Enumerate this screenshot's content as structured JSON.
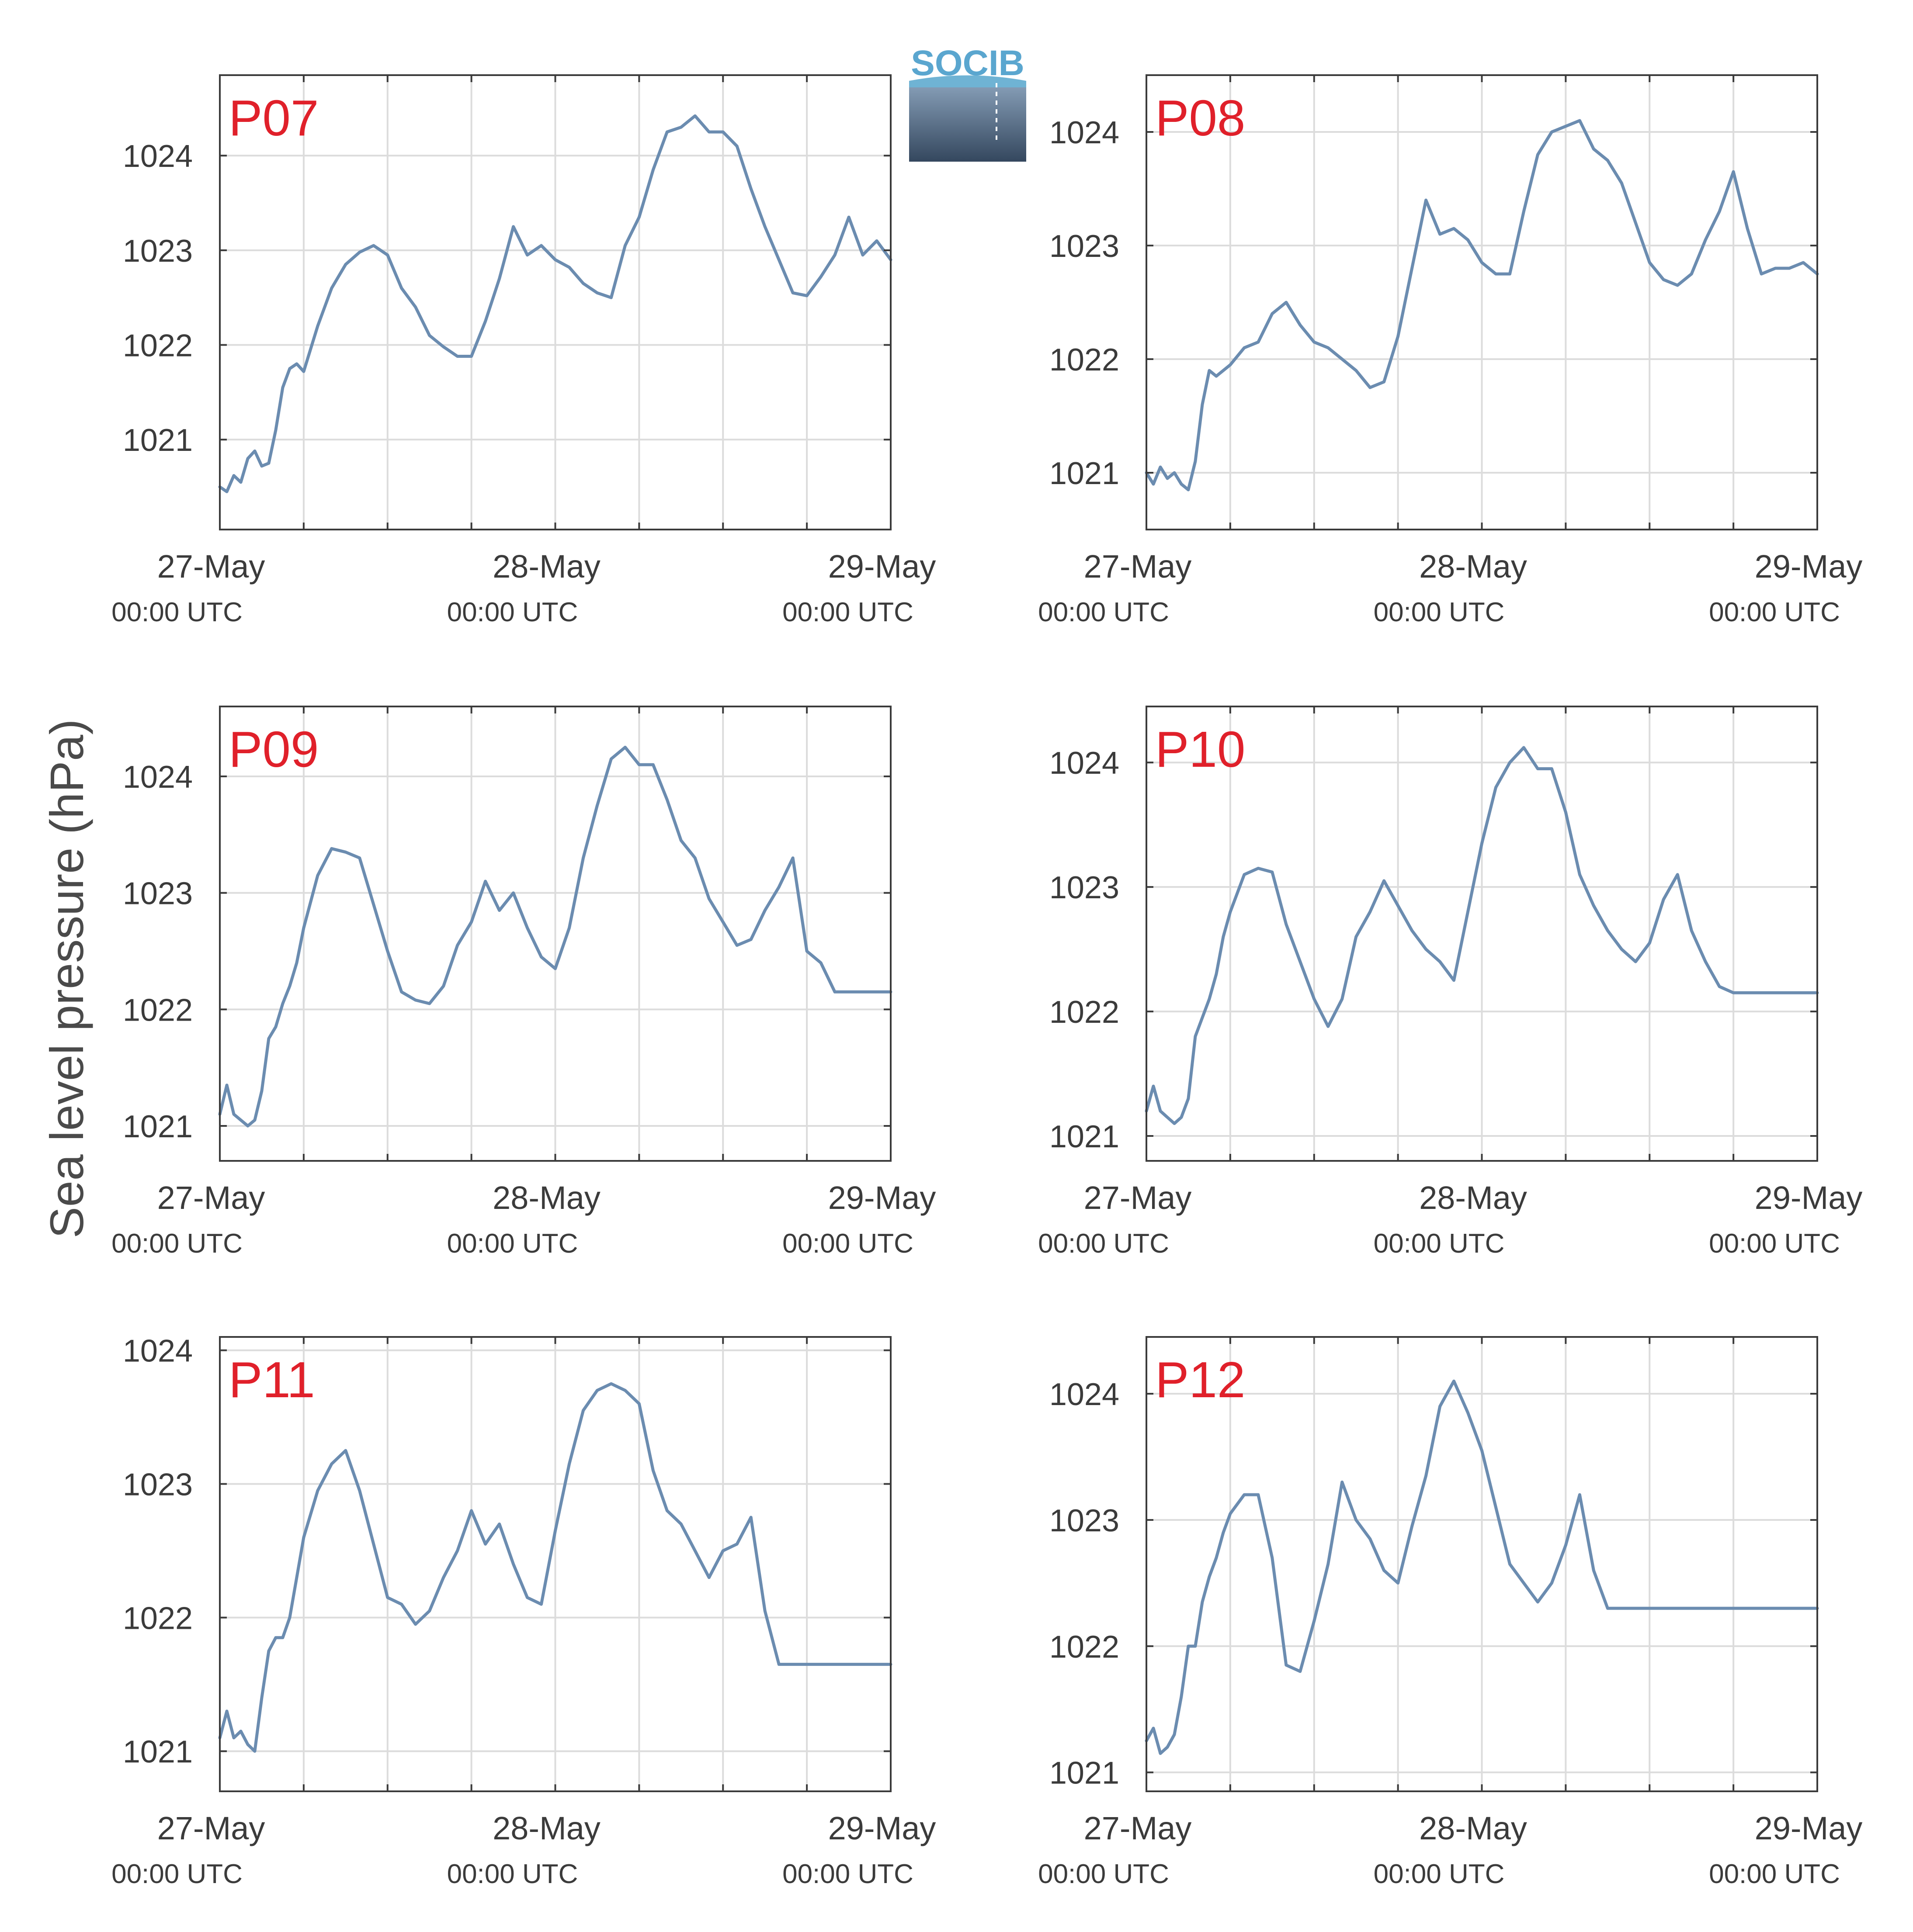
{
  "figure": {
    "ylabel": "Sea level pressure (hPa)",
    "logo_text": "SOCIB",
    "series_color": "#6b8cb0",
    "panel_label_color": "#e0202a",
    "grid_color": "#dcdcdc",
    "axis_color": "#3b3b3b"
  },
  "chart_data": [
    {
      "type": "line",
      "panel": "P07",
      "xlim": [
        0,
        48
      ],
      "ylim": [
        1020.05,
        1024.85
      ],
      "yticks": [
        1021,
        1022,
        1023,
        1024
      ],
      "xticks": [
        {
          "hour": 0,
          "date": "27-May",
          "time": "00:00 UTC"
        },
        {
          "hour": 24,
          "date": "28-May",
          "time": "00:00 UTC"
        },
        {
          "hour": 48,
          "date": "29-May",
          "time": "00:00 UTC"
        }
      ],
      "minor_x_hours": [
        6,
        12,
        18,
        30,
        36,
        42
      ],
      "x": [
        0,
        0.5,
        1,
        1.5,
        2,
        2.5,
        3,
        3.5,
        4,
        4.5,
        5,
        5.5,
        6,
        7,
        8,
        9,
        10,
        11,
        12,
        13,
        14,
        15,
        16,
        17,
        18,
        19,
        20,
        21,
        22,
        23,
        24,
        25,
        26,
        27,
        28,
        29,
        30,
        31,
        32,
        33,
        34,
        35,
        36,
        37,
        38,
        39,
        40,
        41,
        42,
        43,
        44,
        45,
        46,
        47,
        48
      ],
      "y": [
        1020.5,
        1020.45,
        1020.62,
        1020.55,
        1020.8,
        1020.88,
        1020.72,
        1020.75,
        1021.1,
        1021.55,
        1021.75,
        1021.8,
        1021.72,
        1022.2,
        1022.6,
        1022.85,
        1022.98,
        1023.05,
        1022.95,
        1022.6,
        1022.4,
        1022.1,
        1021.98,
        1021.88,
        1021.88,
        1022.25,
        1022.7,
        1023.25,
        1022.95,
        1023.05,
        1022.9,
        1022.82,
        1022.65,
        1022.55,
        1022.5,
        1023.05,
        1023.35,
        1023.85,
        1024.25,
        1024.3,
        1024.42,
        1024.25,
        1024.25,
        1024.1,
        1023.65,
        1023.25,
        1022.9,
        1022.55,
        1022.52,
        1022.72,
        1022.95,
        1023.35,
        1022.95,
        1023.1,
        1022.9
      ]
    },
    {
      "type": "line",
      "panel": "P08",
      "xlim": [
        0,
        48
      ],
      "ylim": [
        1020.5,
        1024.5
      ],
      "yticks": [
        1021,
        1022,
        1023,
        1024
      ],
      "xticks": [
        {
          "hour": 0,
          "date": "27-May",
          "time": "00:00 UTC"
        },
        {
          "hour": 24,
          "date": "28-May",
          "time": "00:00 UTC"
        },
        {
          "hour": 48,
          "date": "29-May",
          "time": "00:00 UTC"
        }
      ],
      "minor_x_hours": [
        6,
        12,
        18,
        30,
        36,
        42
      ],
      "x": [
        0,
        0.5,
        1,
        1.5,
        2,
        2.5,
        3,
        3.5,
        4,
        4.5,
        5,
        5.5,
        6,
        7,
        8,
        9,
        10,
        11,
        12,
        13,
        14,
        15,
        16,
        17,
        18,
        19,
        20,
        21,
        22,
        23,
        24,
        25,
        26,
        27,
        28,
        29,
        30,
        31,
        32,
        33,
        34,
        35,
        36,
        37,
        38,
        39,
        40,
        41,
        42,
        43,
        44,
        45,
        46,
        47,
        48
      ],
      "y": [
        1021.0,
        1020.9,
        1021.05,
        1020.95,
        1021.0,
        1020.9,
        1020.85,
        1021.1,
        1021.6,
        1021.9,
        1021.85,
        1021.9,
        1021.95,
        1022.1,
        1022.15,
        1022.4,
        1022.5,
        1022.3,
        1022.15,
        1022.1,
        1022.0,
        1021.9,
        1021.75,
        1021.8,
        1022.2,
        1022.8,
        1023.4,
        1023.1,
        1023.15,
        1023.05,
        1022.85,
        1022.75,
        1022.75,
        1023.3,
        1023.8,
        1024.0,
        1024.05,
        1024.1,
        1023.85,
        1023.75,
        1023.55,
        1023.2,
        1022.85,
        1022.7,
        1022.65,
        1022.75,
        1023.05,
        1023.3,
        1023.65,
        1023.15,
        1022.75,
        1022.8,
        1022.8,
        1022.85,
        1022.75
      ]
    },
    {
      "type": "line",
      "panel": "P09",
      "xlim": [
        0,
        48
      ],
      "ylim": [
        1020.7,
        1024.6
      ],
      "yticks": [
        1021,
        1022,
        1023,
        1024
      ],
      "xticks": [
        {
          "hour": 0,
          "date": "27-May",
          "time": "00:00 UTC"
        },
        {
          "hour": 24,
          "date": "28-May",
          "time": "00:00 UTC"
        },
        {
          "hour": 48,
          "date": "29-May",
          "time": "00:00 UTC"
        }
      ],
      "minor_x_hours": [
        6,
        12,
        18,
        30,
        36,
        42
      ],
      "x": [
        0,
        0.5,
        1,
        1.5,
        2,
        2.5,
        3,
        3.5,
        4,
        4.5,
        5,
        5.5,
        6,
        7,
        8,
        9,
        10,
        11,
        12,
        13,
        14,
        15,
        16,
        17,
        18,
        19,
        20,
        21,
        22,
        23,
        24,
        25,
        26,
        27,
        28,
        29,
        30,
        31,
        32,
        33,
        34,
        35,
        36,
        37,
        38,
        39,
        40,
        41,
        42,
        43,
        44,
        45,
        46,
        47,
        48
      ],
      "y": [
        1021.1,
        1021.35,
        1021.1,
        1021.05,
        1021.0,
        1021.05,
        1021.3,
        1021.75,
        1021.85,
        1022.05,
        1022.2,
        1022.4,
        1022.7,
        1023.15,
        1023.38,
        1023.35,
        1023.3,
        1022.9,
        1022.5,
        1022.15,
        1022.08,
        1022.05,
        1022.2,
        1022.55,
        1022.75,
        1023.1,
        1022.85,
        1023.0,
        1022.7,
        1022.45,
        1022.35,
        1022.7,
        1023.3,
        1023.75,
        1024.15,
        1024.25,
        1024.1,
        1024.1,
        1023.8,
        1023.45,
        1023.3,
        1022.95,
        1022.75,
        1022.55,
        1022.6,
        1022.85,
        1023.05,
        1023.3,
        1022.5,
        1022.4,
        1022.15,
        1022.15,
        1022.15,
        1022.15,
        1022.15
      ]
    },
    {
      "type": "line",
      "panel": "P10",
      "xlim": [
        0,
        48
      ],
      "ylim": [
        1020.8,
        1024.45
      ],
      "yticks": [
        1021,
        1022,
        1023,
        1024
      ],
      "xticks": [
        {
          "hour": 0,
          "date": "27-May",
          "time": "00:00 UTC"
        },
        {
          "hour": 24,
          "date": "28-May",
          "time": "00:00 UTC"
        },
        {
          "hour": 48,
          "date": "29-May",
          "time": "00:00 UTC"
        }
      ],
      "minor_x_hours": [
        6,
        12,
        18,
        30,
        36,
        42
      ],
      "x": [
        0,
        0.5,
        1,
        1.5,
        2,
        2.5,
        3,
        3.5,
        4,
        4.5,
        5,
        5.5,
        6,
        7,
        8,
        9,
        10,
        11,
        12,
        13,
        14,
        15,
        16,
        17,
        18,
        19,
        20,
        21,
        22,
        23,
        24,
        25,
        26,
        27,
        28,
        29,
        30,
        31,
        32,
        33,
        34,
        35,
        36,
        37,
        38,
        39,
        40,
        41,
        42,
        43,
        44,
        45,
        46,
        47,
        48
      ],
      "y": [
        1021.2,
        1021.4,
        1021.2,
        1021.15,
        1021.1,
        1021.15,
        1021.3,
        1021.8,
        1021.95,
        1022.1,
        1022.3,
        1022.6,
        1022.8,
        1023.1,
        1023.15,
        1023.12,
        1022.7,
        1022.4,
        1022.1,
        1021.88,
        1022.1,
        1022.6,
        1022.8,
        1023.05,
        1022.85,
        1022.65,
        1022.5,
        1022.4,
        1022.25,
        1022.8,
        1023.35,
        1023.8,
        1024.0,
        1024.12,
        1023.95,
        1023.95,
        1023.6,
        1023.1,
        1022.85,
        1022.65,
        1022.5,
        1022.4,
        1022.55,
        1022.9,
        1023.1,
        1022.65,
        1022.4,
        1022.2,
        1022.15,
        1022.15,
        1022.15,
        1022.15,
        1022.15,
        1022.15,
        1022.15
      ]
    },
    {
      "type": "line",
      "panel": "P11",
      "xlim": [
        0,
        48
      ],
      "ylim": [
        1020.7,
        1024.1
      ],
      "yticks": [
        1021,
        1022,
        1023,
        1024
      ],
      "xticks": [
        {
          "hour": 0,
          "date": "27-May",
          "time": "00:00 UTC"
        },
        {
          "hour": 24,
          "date": "28-May",
          "time": "00:00 UTC"
        },
        {
          "hour": 48,
          "date": "29-May",
          "time": "00:00 UTC"
        }
      ],
      "minor_x_hours": [
        6,
        12,
        18,
        30,
        36,
        42
      ],
      "x": [
        0,
        0.5,
        1,
        1.5,
        2,
        2.5,
        3,
        3.5,
        4,
        4.5,
        5,
        5.5,
        6,
        7,
        8,
        9,
        10,
        11,
        12,
        13,
        14,
        15,
        16,
        17,
        18,
        19,
        20,
        21,
        22,
        23,
        24,
        25,
        26,
        27,
        28,
        29,
        30,
        31,
        32,
        33,
        34,
        35,
        36,
        37,
        38,
        39,
        40,
        41,
        42,
        43,
        44,
        45,
        46,
        47,
        48
      ],
      "y": [
        1021.1,
        1021.3,
        1021.1,
        1021.15,
        1021.05,
        1021.0,
        1021.4,
        1021.75,
        1021.85,
        1021.85,
        1022.0,
        1022.3,
        1022.6,
        1022.95,
        1023.15,
        1023.25,
        1022.95,
        1022.55,
        1022.15,
        1022.1,
        1021.95,
        1022.05,
        1022.3,
        1022.5,
        1022.8,
        1022.55,
        1022.7,
        1022.4,
        1022.15,
        1022.1,
        1022.65,
        1023.15,
        1023.55,
        1023.7,
        1023.75,
        1023.7,
        1023.6,
        1023.1,
        1022.8,
        1022.7,
        1022.5,
        1022.3,
        1022.5,
        1022.55,
        1022.75,
        1022.05,
        1021.65,
        1021.65,
        1021.65,
        1021.65,
        1021.65,
        1021.65,
        1021.65,
        1021.65,
        1021.65
      ]
    },
    {
      "type": "line",
      "panel": "P12",
      "xlim": [
        0,
        48
      ],
      "ylim": [
        1020.85,
        1024.45
      ],
      "yticks": [
        1021,
        1022,
        1023,
        1024
      ],
      "xticks": [
        {
          "hour": 0,
          "date": "27-May",
          "time": "00:00 UTC"
        },
        {
          "hour": 24,
          "date": "28-May",
          "time": "00:00 UTC"
        },
        {
          "hour": 48,
          "date": "29-May",
          "time": "00:00 UTC"
        }
      ],
      "minor_x_hours": [
        6,
        12,
        18,
        30,
        36,
        42
      ],
      "x": [
        0,
        0.5,
        1,
        1.5,
        2,
        2.5,
        3,
        3.5,
        4,
        4.5,
        5,
        5.5,
        6,
        7,
        8,
        9,
        10,
        11,
        12,
        13,
        14,
        15,
        16,
        17,
        18,
        19,
        20,
        21,
        22,
        23,
        24,
        25,
        26,
        27,
        28,
        29,
        30,
        31,
        32,
        33,
        34,
        35,
        36,
        37,
        38,
        39,
        40,
        41,
        42,
        43,
        44,
        45,
        46,
        47,
        48
      ],
      "y": [
        1021.25,
        1021.35,
        1021.15,
        1021.2,
        1021.3,
        1021.6,
        1022.0,
        1022.0,
        1022.35,
        1022.55,
        1022.7,
        1022.9,
        1023.05,
        1023.2,
        1023.2,
        1022.7,
        1021.85,
        1021.8,
        1022.2,
        1022.65,
        1023.3,
        1023.0,
        1022.85,
        1022.6,
        1022.5,
        1022.95,
        1023.35,
        1023.9,
        1024.1,
        1023.85,
        1023.55,
        1023.1,
        1022.65,
        1022.5,
        1022.35,
        1022.5,
        1022.8,
        1023.2,
        1022.6,
        1022.3,
        1022.3,
        1022.3,
        1022.3,
        1022.3,
        1022.3,
        1022.3,
        1022.3,
        1022.3,
        1022.3,
        1022.3,
        1022.3,
        1022.3,
        1022.3,
        1022.3,
        1022.3
      ]
    }
  ]
}
